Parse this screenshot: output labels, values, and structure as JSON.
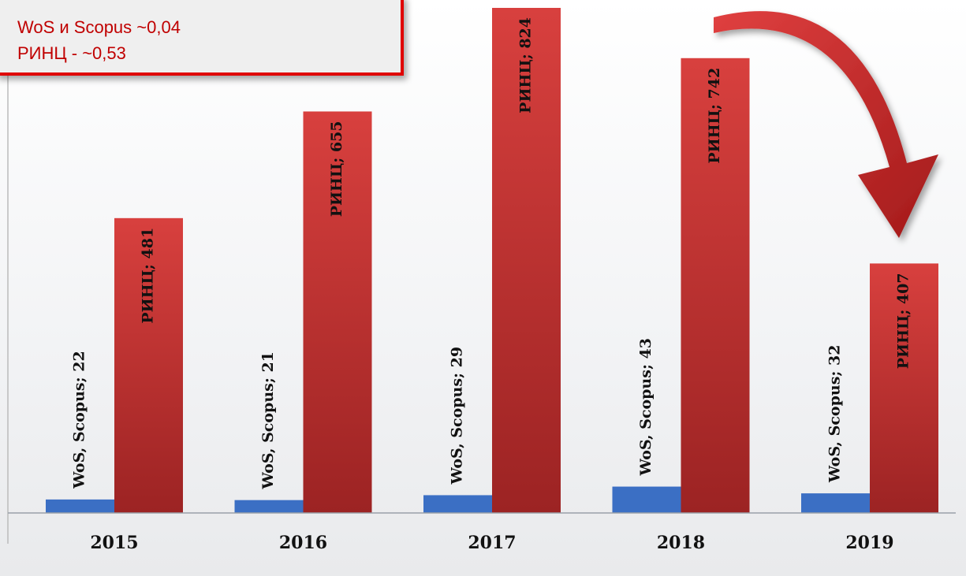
{
  "chart_data": {
    "type": "bar",
    "annotations": [
      "WoS и Scopus ~0,04",
      "РИНЦ - ~0,53"
    ],
    "categories": [
      "2015",
      "2016",
      "2017",
      "2018",
      "2019"
    ],
    "series": [
      {
        "name": "WoS, Scopus",
        "color": "#3b6fc4",
        "values": [
          22,
          21,
          29,
          43,
          32
        ],
        "value_labels": [
          "WoS, Scopus; 22",
          "WoS, Scopus; 21",
          "WoS, Scopus; 29",
          "WoS, Scopus; 43",
          "WoS, Scopus; 32"
        ]
      },
      {
        "name": "РИНЦ",
        "color": "#c0302f",
        "values": [
          481,
          655,
          824,
          742,
          407
        ],
        "value_labels": [
          "РИНЦ; 481",
          "РИНЦ; 655",
          "РИНЦ; 824",
          "РИНЦ; 742",
          "РИНЦ; 407"
        ]
      }
    ]
  }
}
